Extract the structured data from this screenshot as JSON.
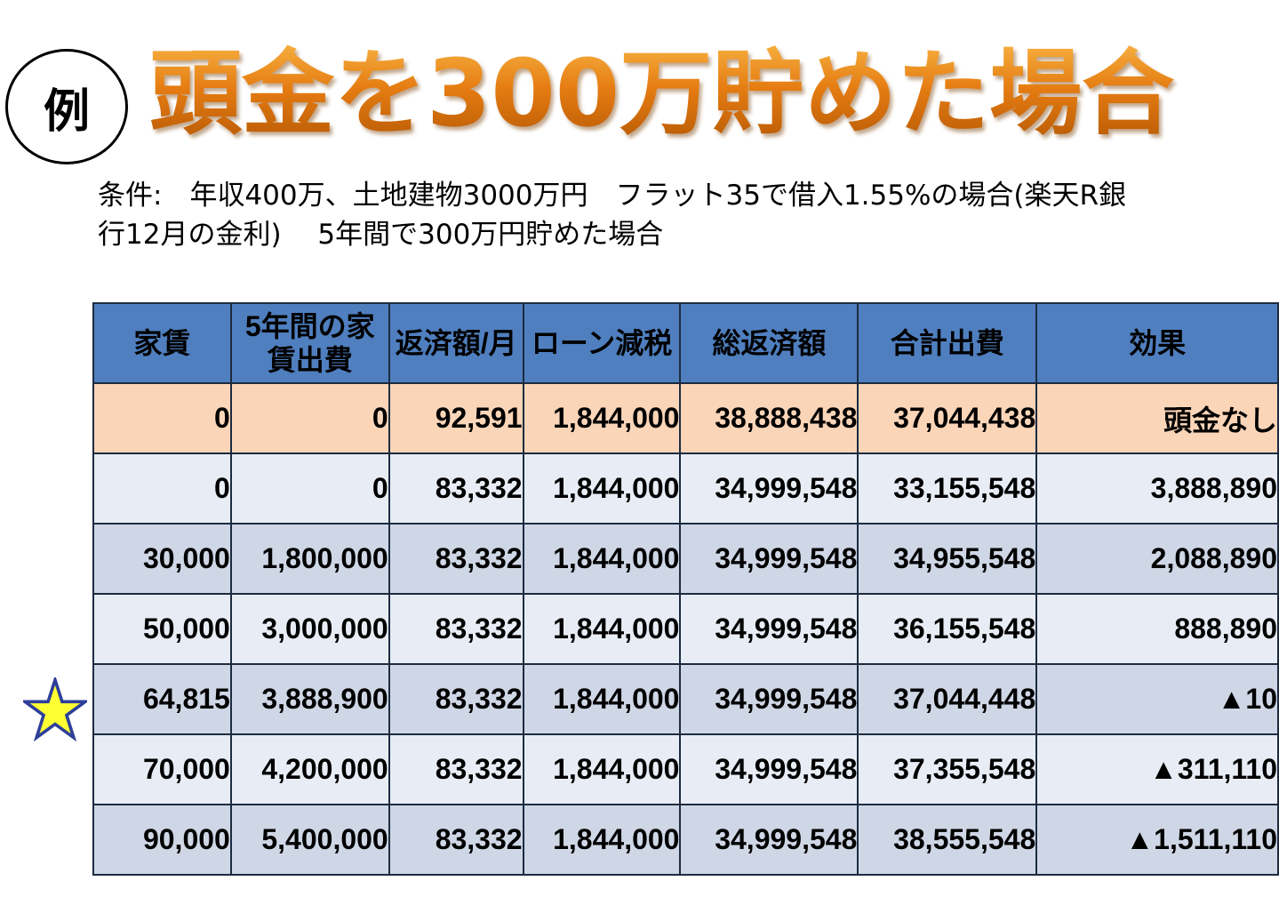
{
  "badge": "例",
  "title": "頭金を300万貯めた場合",
  "conditions": {
    "line1": "条件:　年収400万、土地建物3000万円　フラット35で借入1.55%の場合(楽天R銀",
    "line2": "行12月の金利)　 5年間で300万円貯めた場合"
  },
  "table": {
    "headers": {
      "rent": "家賃",
      "five_year_rent": "5年間の家賃出費",
      "monthly_payment": "返済額/月",
      "loan_tax_reduction": "ローン減税",
      "total_repayment": "総返済額",
      "total_expense": "合計出費",
      "effect": "効果"
    },
    "rows": [
      {
        "rent": "0",
        "five_year_rent": "0",
        "monthly_payment": "92,591",
        "loan_tax_reduction": "1,844,000",
        "total_repayment": "38,888,438",
        "total_expense": "37,044,438",
        "effect": "頭金なし"
      },
      {
        "rent": "0",
        "five_year_rent": "0",
        "monthly_payment": "83,332",
        "loan_tax_reduction": "1,844,000",
        "total_repayment": "34,999,548",
        "total_expense": "33,155,548",
        "effect": "3,888,890"
      },
      {
        "rent": "30,000",
        "five_year_rent": "1,800,000",
        "monthly_payment": "83,332",
        "loan_tax_reduction": "1,844,000",
        "total_repayment": "34,999,548",
        "total_expense": "34,955,548",
        "effect": "2,088,890"
      },
      {
        "rent": "50,000",
        "five_year_rent": "3,000,000",
        "monthly_payment": "83,332",
        "loan_tax_reduction": "1,844,000",
        "total_repayment": "34,999,548",
        "total_expense": "36,155,548",
        "effect": "888,890"
      },
      {
        "rent": "64,815",
        "five_year_rent": "3,888,900",
        "monthly_payment": "83,332",
        "loan_tax_reduction": "1,844,000",
        "total_repayment": "34,999,548",
        "total_expense": "37,044,448",
        "effect": "▲10"
      },
      {
        "rent": "70,000",
        "five_year_rent": "4,200,000",
        "monthly_payment": "83,332",
        "loan_tax_reduction": "1,844,000",
        "total_repayment": "34,999,548",
        "total_expense": "37,355,548",
        "effect": "▲311,110"
      },
      {
        "rent": "90,000",
        "five_year_rent": "5,400,000",
        "monthly_payment": "83,332",
        "loan_tax_reduction": "1,844,000",
        "total_repayment": "34,999,548",
        "total_expense": "38,555,548",
        "effect": "▲1,511,110"
      }
    ]
  },
  "colors": {
    "title_orange": "#e57c12",
    "header_blue": "#4f7fbf",
    "row_orange": "#fbd5b8",
    "row_light": "#e8edf5",
    "row_dark": "#cfd7e6",
    "effect_red": "#ff0000",
    "star_fill": "#ffff33",
    "star_stroke": "#2e3f99"
  },
  "icons": {
    "star": "star-icon"
  }
}
